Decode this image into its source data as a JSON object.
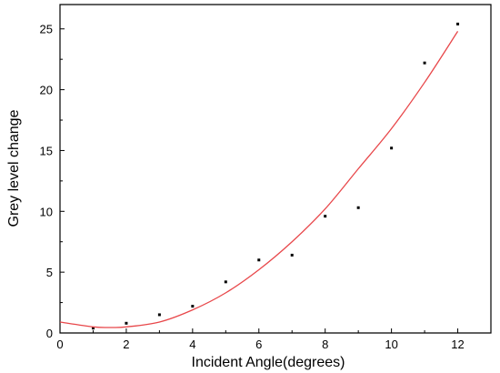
{
  "chart_data": {
    "type": "scatter",
    "title": "",
    "xlabel": "Incident  Angle(degrees)",
    "ylabel": "Grey level change",
    "xlim": [
      0,
      13
    ],
    "ylim": [
      0,
      27
    ],
    "x_ticks": [
      0,
      2,
      4,
      6,
      8,
      10,
      12
    ],
    "y_ticks": [
      0,
      5,
      10,
      15,
      20,
      25
    ],
    "x_tick_labels": [
      "0",
      "2",
      "4",
      "6",
      "8",
      "10",
      "12"
    ],
    "y_tick_labels": [
      "0",
      "5",
      "10",
      "15",
      "20",
      "25"
    ],
    "grid": false,
    "legend": "none",
    "series": [
      {
        "kind": "points",
        "color": "#000000",
        "x": [
          1,
          2,
          3,
          4,
          5,
          6,
          7,
          8,
          9,
          10,
          11,
          12
        ],
        "y": [
          0.4,
          0.8,
          1.5,
          2.2,
          4.2,
          6.0,
          6.4,
          9.6,
          10.3,
          15.2,
          22.2,
          25.4
        ]
      },
      {
        "kind": "fit-curve",
        "color": "#e8474a",
        "x": [
          0,
          1,
          1.5,
          2,
          3,
          4,
          5,
          6,
          7,
          8,
          9,
          10,
          11,
          12
        ],
        "y": [
          0.9,
          0.5,
          0.45,
          0.5,
          0.9,
          1.9,
          3.3,
          5.2,
          7.5,
          10.2,
          13.5,
          16.8,
          20.6,
          24.8
        ]
      }
    ]
  }
}
